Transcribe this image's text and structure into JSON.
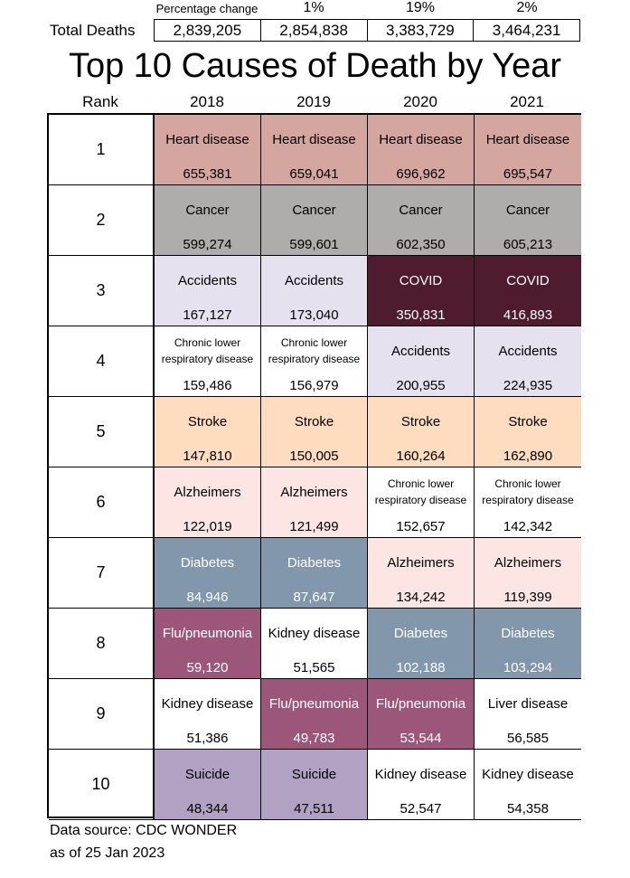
{
  "chart_data": {
    "type": "table",
    "title": "Top 10 Causes of Death by Year",
    "rank_label": "Rank",
    "years": [
      "2018",
      "2019",
      "2020",
      "2021"
    ],
    "percentage_change_label": "Percentage change",
    "percentage_change": [
      "1%",
      "19%",
      "2%"
    ],
    "total_deaths_label": "Total Deaths",
    "total_deaths": [
      "2,839,205",
      "2,854,838",
      "3,383,729",
      "3,464,231"
    ],
    "rows": [
      {
        "rank": "1",
        "cells": [
          {
            "cause": "Heart disease",
            "value": "655,381",
            "color": "#D5A69F"
          },
          {
            "cause": "Heart disease",
            "value": "659,041",
            "color": "#D5A69F"
          },
          {
            "cause": "Heart disease",
            "value": "696,962",
            "color": "#D5A69F"
          },
          {
            "cause": "Heart disease",
            "value": "695,547",
            "color": "#D5A69F"
          }
        ]
      },
      {
        "rank": "2",
        "cells": [
          {
            "cause": "Cancer",
            "value": "599,274",
            "color": "#AFADAB"
          },
          {
            "cause": "Cancer",
            "value": "599,601",
            "color": "#AFADAB"
          },
          {
            "cause": "Cancer",
            "value": "602,350",
            "color": "#AFADAB"
          },
          {
            "cause": "Cancer",
            "value": "605,213",
            "color": "#AFADAB"
          }
        ]
      },
      {
        "rank": "3",
        "cells": [
          {
            "cause": "Accidents",
            "value": "167,127",
            "color": "#E6E1EF"
          },
          {
            "cause": "Accidents",
            "value": "173,040",
            "color": "#E6E1EF"
          },
          {
            "cause": "COVID",
            "value": "350,831",
            "color": "#4E1B2F",
            "light": true
          },
          {
            "cause": "COVID",
            "value": "416,893",
            "color": "#4E1B2F",
            "light": true
          }
        ]
      },
      {
        "rank": "4",
        "cells": [
          {
            "cause": "Chronic lower respiratory disease",
            "value": "159,486",
            "color": "#FFFFFF",
            "small": true
          },
          {
            "cause": "Chronic lower respiratory disease",
            "value": "156,979",
            "color": "#FFFFFF",
            "small": true
          },
          {
            "cause": "Accidents",
            "value": "200,955",
            "color": "#E6E1EF"
          },
          {
            "cause": "Accidents",
            "value": "224,935",
            "color": "#E6E1EF"
          }
        ]
      },
      {
        "rank": "5",
        "cells": [
          {
            "cause": "Stroke",
            "value": "147,810",
            "color": "#FDDCBF"
          },
          {
            "cause": "Stroke",
            "value": "150,005",
            "color": "#FDDCBF"
          },
          {
            "cause": "Stroke",
            "value": "160,264",
            "color": "#FDDCBF"
          },
          {
            "cause": "Stroke",
            "value": "162,890",
            "color": "#FDDCBF"
          }
        ]
      },
      {
        "rank": "6",
        "cells": [
          {
            "cause": "Alzheimers",
            "value": "122,019",
            "color": "#FCE5E2"
          },
          {
            "cause": "Alzheimers",
            "value": "121,499",
            "color": "#FCE5E2"
          },
          {
            "cause": "Chronic lower respiratory disease",
            "value": "152,657",
            "color": "#FFFFFF",
            "small": true
          },
          {
            "cause": "Chronic lower respiratory disease",
            "value": "142,342",
            "color": "#FFFFFF",
            "small": true
          }
        ]
      },
      {
        "rank": "7",
        "cells": [
          {
            "cause": "Diabetes",
            "value": "84,946",
            "color": "#8296AC",
            "light": true
          },
          {
            "cause": "Diabetes",
            "value": "87,647",
            "color": "#8296AC",
            "light": true
          },
          {
            "cause": "Alzheimers",
            "value": "134,242",
            "color": "#FCE5E2"
          },
          {
            "cause": "Alzheimers",
            "value": "119,399",
            "color": "#FCE5E2"
          }
        ]
      },
      {
        "rank": "8",
        "cells": [
          {
            "cause": "Flu/pneumonia",
            "value": "59,120",
            "color": "#9C567A",
            "light": true
          },
          {
            "cause": "Kidney disease",
            "value": "51,565",
            "color": "#FFFFFF"
          },
          {
            "cause": "Diabetes",
            "value": "102,188",
            "color": "#8296AC",
            "light": true
          },
          {
            "cause": "Diabetes",
            "value": "103,294",
            "color": "#8296AC",
            "light": true
          }
        ]
      },
      {
        "rank": "9",
        "cells": [
          {
            "cause": "Kidney disease",
            "value": "51,386",
            "color": "#FFFFFF"
          },
          {
            "cause": "Flu/pneumonia",
            "value": "49,783",
            "color": "#9C567A",
            "light": true
          },
          {
            "cause": "Flu/pneumonia",
            "value": "53,544",
            "color": "#9C567A",
            "light": true
          },
          {
            "cause": "Liver disease",
            "value": "56,585",
            "color": "#FFFFFF"
          }
        ]
      },
      {
        "rank": "10",
        "cells": [
          {
            "cause": "Suicide",
            "value": "48,344",
            "color": "#B1A1C2"
          },
          {
            "cause": "Suicide",
            "value": "47,511",
            "color": "#B1A1C2"
          },
          {
            "cause": "Kidney disease",
            "value": "52,547",
            "color": "#FFFFFF"
          },
          {
            "cause": "Kidney disease",
            "value": "54,358",
            "color": "#FFFFFF"
          }
        ]
      }
    ],
    "source": "Data source: CDC WONDER",
    "as_of": "as of 25 Jan 2023"
  }
}
